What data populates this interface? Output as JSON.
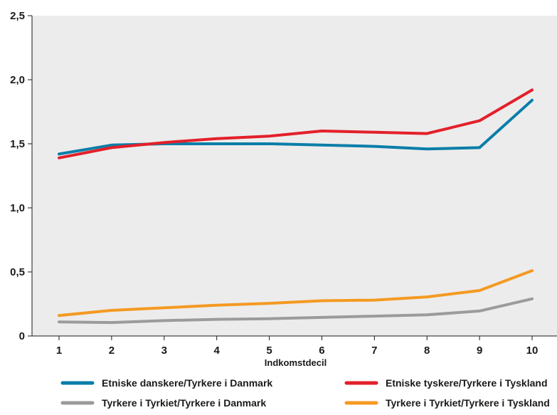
{
  "chart_data": {
    "type": "line",
    "title": "",
    "xlabel": "Indkomstdecil",
    "ylabel": "",
    "categories": [
      1,
      2,
      3,
      4,
      5,
      6,
      7,
      8,
      9,
      10
    ],
    "ylim": [
      0,
      2.5
    ],
    "yticks": [
      "0",
      "0,5",
      "1,0",
      "1,5",
      "2,0",
      "2,5"
    ],
    "ytick_values": [
      0,
      0.5,
      1.0,
      1.5,
      2.0,
      2.5
    ],
    "grid": false,
    "legend_position": "bottom",
    "plot_background": "#ececec",
    "series": [
      {
        "name": "Etniske danskere/Tyrkere i Danmark",
        "color": "#0a7ea8",
        "values": [
          1.42,
          1.49,
          1.5,
          1.5,
          1.5,
          1.49,
          1.48,
          1.46,
          1.47,
          1.84
        ]
      },
      {
        "name": "Etniske tyskere/Tyrkere i Tyskland",
        "color": "#e3202a",
        "values": [
          1.39,
          1.47,
          1.51,
          1.54,
          1.56,
          1.6,
          1.59,
          1.58,
          1.68,
          1.92
        ]
      },
      {
        "name": "Tyrkere i Tyrkiet/Tyrkere i Danmark",
        "color": "#9b9b9b",
        "values": [
          0.11,
          0.105,
          0.12,
          0.13,
          0.135,
          0.145,
          0.155,
          0.165,
          0.195,
          0.29
        ]
      },
      {
        "name": "Tyrkere i Tyrkiet/Tyrkere i Tyskland",
        "color": "#f49a22",
        "values": [
          0.16,
          0.2,
          0.22,
          0.24,
          0.255,
          0.275,
          0.28,
          0.305,
          0.355,
          0.51
        ]
      }
    ]
  }
}
